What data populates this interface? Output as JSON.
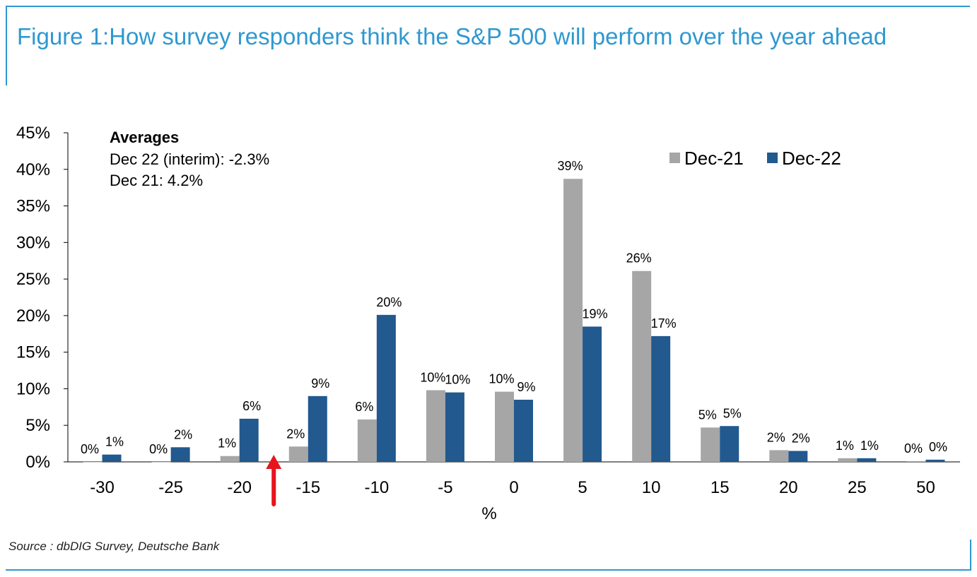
{
  "title": "Figure 1:How survey responders think the S&P 500 will perform over the year ahead",
  "source": "Source : dbDIG Survey, Deutsche Bank",
  "colors": {
    "accent": "#2e98d0",
    "dec21": "#a6a6a6",
    "dec22": "#22598e",
    "marker": "#e8141d"
  },
  "annotation": {
    "heading": "Averages",
    "line1": "Dec 22 (interim): -2.3%",
    "line2": "Dec 21: 4.2%"
  },
  "chart_data": {
    "type": "bar",
    "categories": [
      "-30",
      "-25",
      "-20",
      "-15",
      "-10",
      "-5",
      "0",
      "5",
      "10",
      "15",
      "20",
      "25",
      "50"
    ],
    "series": [
      {
        "name": "Dec-21",
        "values": [
          0,
          0,
          0.8,
          2.1,
          5.8,
          9.8,
          9.6,
          38.7,
          26.1,
          4.7,
          1.6,
          0.5,
          0.1
        ],
        "labels": [
          "0%",
          "0%",
          "1%",
          "2%",
          "6%",
          "10%",
          "10%",
          "39%",
          "26%",
          "5%",
          "2%",
          "1%",
          "0%"
        ]
      },
      {
        "name": "Dec-22",
        "values": [
          1.0,
          2.0,
          5.9,
          9.0,
          20.1,
          9.5,
          8.5,
          18.5,
          17.2,
          4.9,
          1.5,
          0.5,
          0.3
        ],
        "labels": [
          "1%",
          "2%",
          "6%",
          "9%",
          "20%",
          "10%",
          "9%",
          "19%",
          "17%",
          "5%",
          "2%",
          "1%",
          "0%"
        ]
      }
    ],
    "ylim": [
      0,
      45
    ],
    "yticks": [
      "0%",
      "5%",
      "10%",
      "15%",
      "20%",
      "25%",
      "30%",
      "35%",
      "40%",
      "45%"
    ],
    "xlabel": "%",
    "ylabel": "",
    "legend": "top-right",
    "grid": false,
    "marker": {
      "type": "arrow",
      "at": "between -20 and -15",
      "value": -17.5
    }
  }
}
